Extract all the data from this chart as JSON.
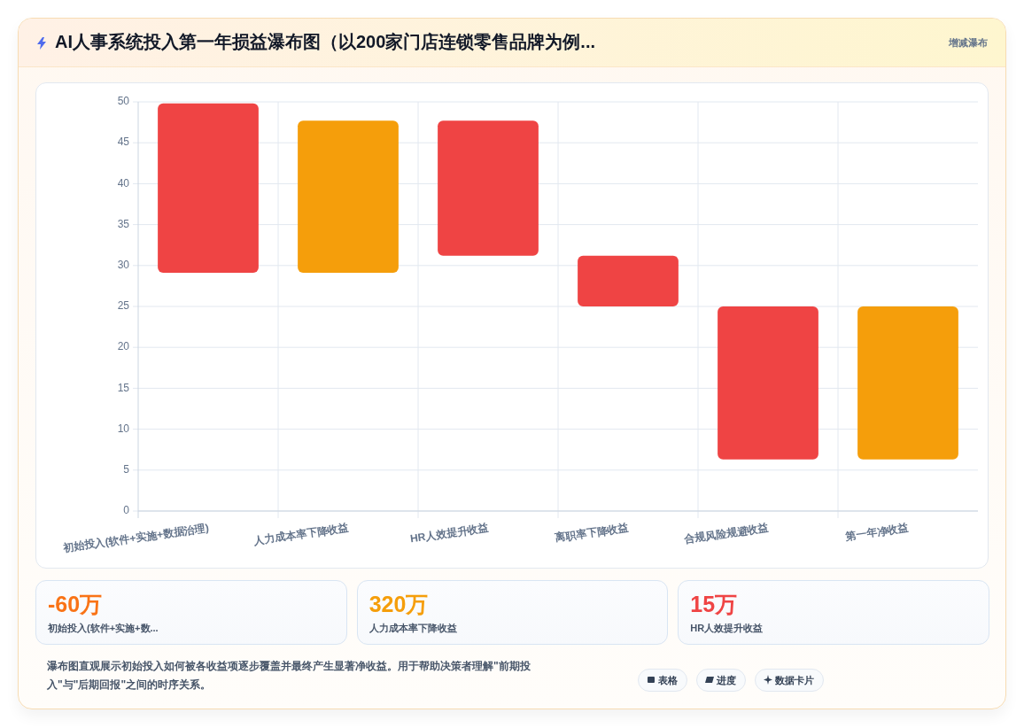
{
  "chart_data": [
    {
      "type": "bar",
      "title": "AI人事系统投入第一年损益瀑布图（以200家门店连锁零售品牌为例...",
      "subtitle": "增减瀑布",
      "categories": [
        "初始投入(软件+实施+数据治理)",
        "人力成本率下降收益",
        "HR人效提升收益",
        "离职率下降收益",
        "合规风险规避收益",
        "第一年净收益"
      ],
      "values": [
        20.7,
        18.6,
        16.5,
        6.2,
        18.7,
        18.7
      ],
      "base": [
        29.1,
        29.1,
        31.2,
        25,
        6.3,
        6.3
      ],
      "colors": [
        "#ef4444",
        "#f59e0b",
        "#ef4444",
        "#ef4444",
        "#ef4444",
        "#f59e0b"
      ],
      "ylim": [
        0,
        50
      ],
      "yticks": [
        0,
        5,
        10,
        15,
        20,
        25,
        30,
        35,
        40,
        45,
        50
      ],
      "grid": true,
      "annotations": [
        "瀑布图直观展示初始投入如何被各收益项逐步覆盖并最终产生显著净收益。用于帮助决策者理解\"前期投入\"与\"后期回报\"之间的时序关系。",
        "表格",
        "进度",
        "数据卡片"
      ]
    },
    {
      "type": "other",
      "annotations": [
        "-60万",
        "初始投入(软件+实施+数...",
        "320万",
        "人力成本率下降收益",
        "15万",
        "HR人效提升收益"
      ],
      "colors": [
        "#f97316",
        "#f59e0b",
        "#ef4444"
      ]
    }
  ]
}
